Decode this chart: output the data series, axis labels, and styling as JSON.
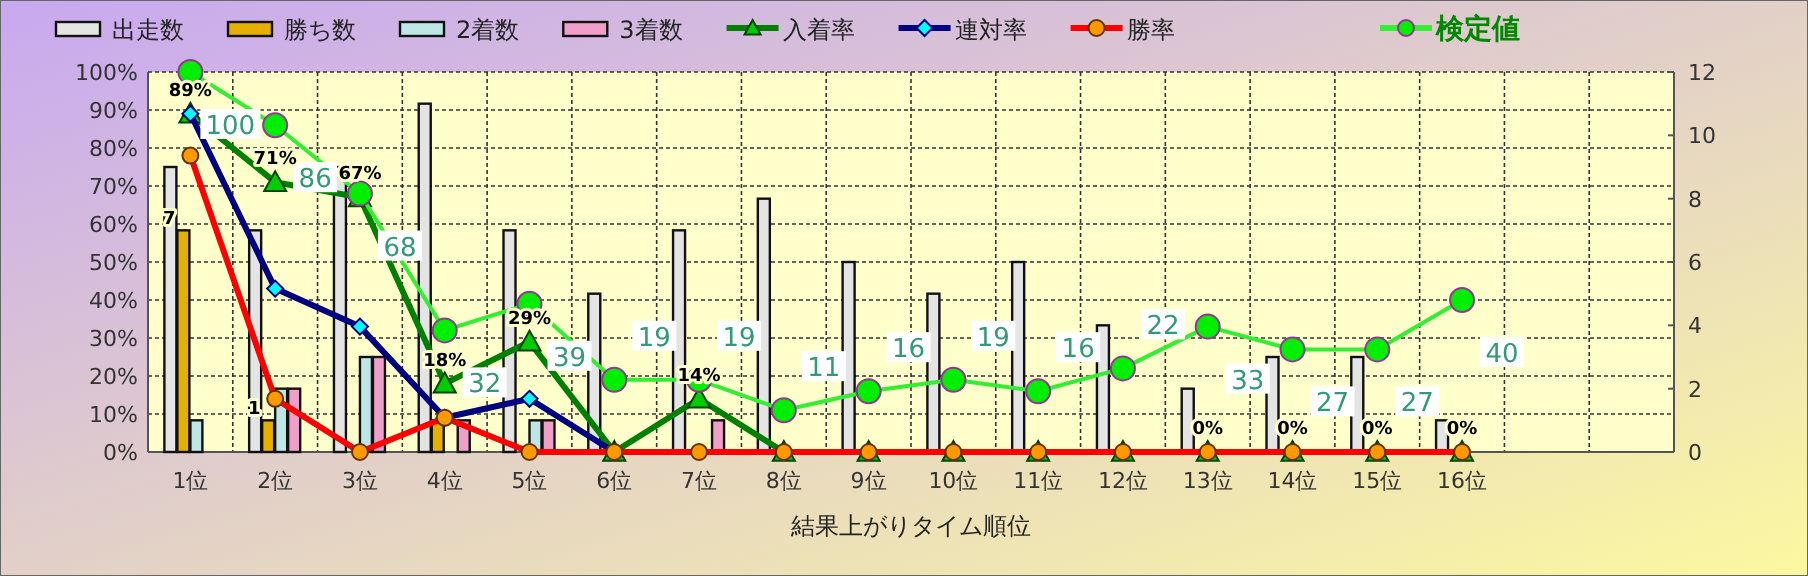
{
  "chart_data": {
    "type": "bar",
    "xlabel": "結果上がりタイム順位",
    "categories": [
      "1位",
      "2位",
      "3位",
      "4位",
      "5位",
      "6位",
      "7位",
      "8位",
      "9位",
      "10位",
      "11位",
      "12位",
      "13位",
      "14位",
      "15位",
      "16位",
      null,
      null
    ],
    "series": [
      {
        "name": "出走数",
        "axis": "y2",
        "color": "#e4e4e4",
        "values": [
          9,
          7,
          9,
          11,
          7,
          5,
          7,
          8,
          6,
          5,
          6,
          4,
          2,
          3,
          3,
          1,
          null,
          null
        ]
      },
      {
        "name": "勝ち数",
        "axis": "y2",
        "color": "#e6b000",
        "values": [
          7,
          1,
          0,
          1,
          0,
          0,
          0,
          0,
          0,
          0,
          0,
          0,
          0,
          0,
          0,
          0,
          null,
          null
        ],
        "value_labels": [
          "7",
          "1",
          null,
          null,
          null,
          null,
          null,
          null,
          null,
          null,
          null,
          null,
          null,
          null,
          null,
          null,
          null,
          null
        ]
      },
      {
        "name": "2着数",
        "axis": "y2",
        "color": "#bfe6e6",
        "values": [
          1,
          2,
          3,
          0,
          1,
          0,
          0,
          0,
          0,
          0,
          0,
          0,
          0,
          0,
          0,
          0,
          null,
          null
        ]
      },
      {
        "name": "3着数",
        "axis": "y2",
        "color": "#f0a0c8",
        "values": [
          0,
          2,
          3,
          1,
          1,
          0,
          1,
          0,
          0,
          0,
          0,
          0,
          0,
          0,
          0,
          0,
          null,
          null
        ]
      },
      {
        "name": "入着率",
        "type": "line",
        "color": "#008000",
        "marker": "triangle",
        "values": [
          89,
          71,
          67,
          18,
          29,
          0,
          14,
          0,
          0,
          0,
          0,
          0,
          0,
          0,
          0,
          0,
          null,
          null
        ],
        "value_labels": [
          "89%",
          "71%",
          "67%",
          "18%",
          "29%",
          null,
          "14%",
          null,
          null,
          null,
          null,
          null,
          "0%",
          "0%",
          "0%",
          "0%",
          null,
          null
        ]
      },
      {
        "name": "連対率",
        "type": "line",
        "color": "#000080",
        "marker": "diamond",
        "values": [
          89,
          43,
          33,
          9,
          14,
          0,
          null,
          null,
          null,
          null,
          null,
          null,
          null,
          null,
          null,
          null,
          null,
          null
        ]
      },
      {
        "name": "勝率",
        "type": "line",
        "color": "#ff0000",
        "marker": "circle",
        "values": [
          78,
          14,
          0,
          9,
          0,
          0,
          0,
          0,
          0,
          0,
          0,
          0,
          0,
          0,
          0,
          0,
          null,
          null
        ]
      },
      {
        "name": "検定値",
        "type": "line",
        "color": "#33ee33",
        "marker": "circle",
        "values": [
          100,
          86,
          68,
          32,
          39,
          19,
          19,
          11,
          16,
          19,
          16,
          22,
          33,
          27,
          27,
          40,
          null,
          null
        ],
        "value_labels": [
          "100",
          "86",
          "68",
          "32",
          "39",
          "19",
          "19",
          "11",
          "16",
          "19",
          "16",
          "22",
          "33",
          "27",
          "27",
          "40",
          null,
          null
        ]
      }
    ],
    "ylim": [
      0,
      100
    ],
    "yticks": [
      {
        "value": 0,
        "label": "0%"
      },
      {
        "value": 10,
        "label": "10%"
      },
      {
        "value": 20,
        "label": "20%"
      },
      {
        "value": 30,
        "label": "30%"
      },
      {
        "value": 40,
        "label": "40%"
      },
      {
        "value": 50,
        "label": "50%"
      },
      {
        "value": 60,
        "label": "60%"
      },
      {
        "value": 70,
        "label": "70%"
      },
      {
        "value": 80,
        "label": "80%"
      },
      {
        "value": 90,
        "label": "90%"
      },
      {
        "value": 100,
        "label": "100%"
      }
    ],
    "y2lim": [
      0,
      12
    ],
    "y2ticks": [
      0,
      2,
      4,
      6,
      8,
      10,
      12
    ],
    "grid": true,
    "legend": "top"
  }
}
